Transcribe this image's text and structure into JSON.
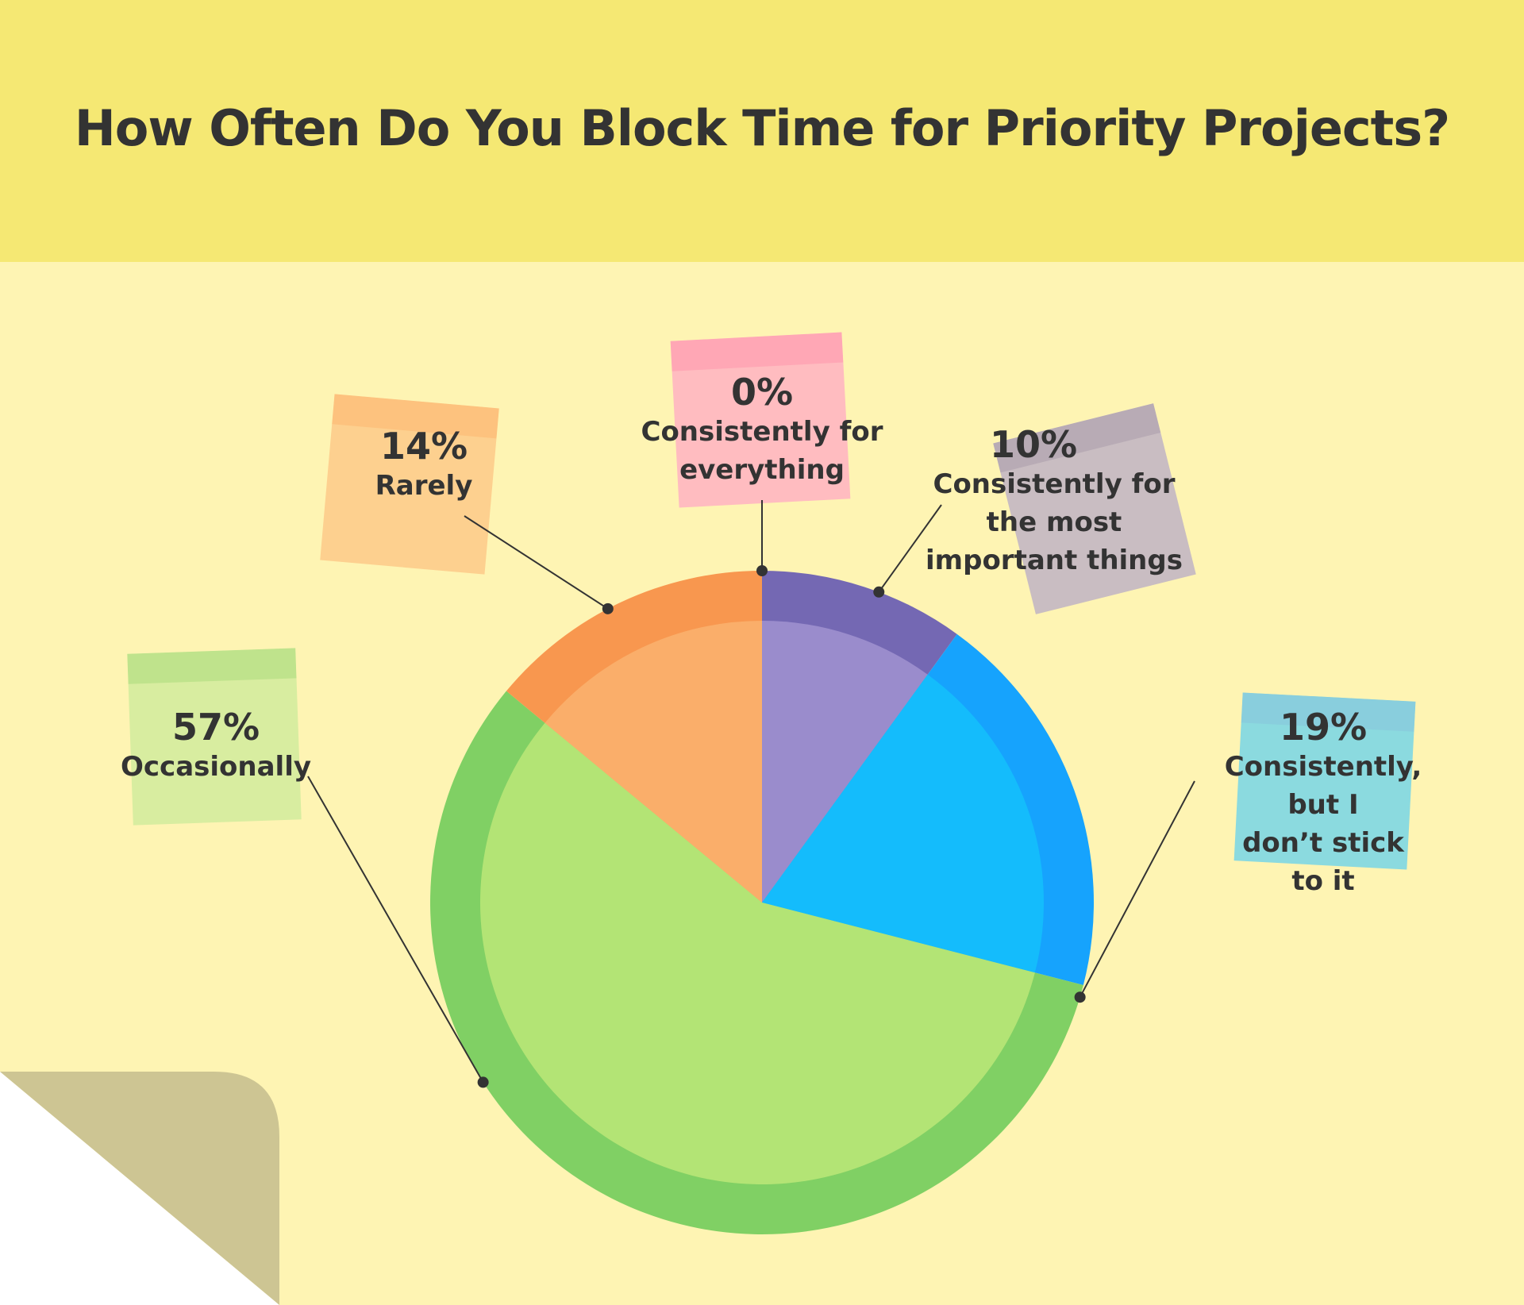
{
  "title": "How Often Do You Block Time for Priority Projects?",
  "colors": {
    "header_bg": "#f5e873",
    "page_bg": "#fef4b3",
    "text": "#333333"
  },
  "chart_data": {
    "type": "pie",
    "title": "How Often Do You Block Time for Priority Projects?",
    "slices": [
      {
        "label": "Consistently for everything",
        "value": 0,
        "pct_label": "0%",
        "color": "#f5a3b4",
        "outer_color": "#f5a3b4",
        "note_color": "#ffbcc0",
        "note_strip": "#ffa7b5"
      },
      {
        "label": "Consistently for the most important things",
        "value": 10,
        "pct_label": "10%",
        "color": "#9a8ccc",
        "outer_color": "#7468b3",
        "note_color": "#c9bdc2",
        "note_strip": "#b8abb5"
      },
      {
        "label": "Consistently, but I don’t stick to it",
        "value": 19,
        "pct_label": "19%",
        "color": "#14bcfc",
        "outer_color": "#16a3fd",
        "note_color": "#8bdadf",
        "note_strip": "#89cedd"
      },
      {
        "label": "Occasionally",
        "value": 57,
        "pct_label": "57%",
        "color": "#b3e475",
        "outer_color": "#80d064",
        "note_color": "#d8eda0",
        "note_strip": "#bfe38c"
      },
      {
        "label": "Rarely",
        "value": 14,
        "pct_label": "14%",
        "color": "#faae6a",
        "outer_color": "#f8974f",
        "note_color": "#fdd08f",
        "note_strip": "#fdc27e"
      }
    ]
  },
  "labels": [
    {
      "pct": "0%",
      "cat": "Consistently for\neverything"
    },
    {
      "pct": "10%",
      "cat": "Consistently for\nthe most\nimportant things"
    },
    {
      "pct": "19%",
      "cat": "Consistently, but I\ndon’t stick to it"
    },
    {
      "pct": "57%",
      "cat": "Occasionally"
    },
    {
      "pct": "14%",
      "cat": "Rarely"
    }
  ]
}
